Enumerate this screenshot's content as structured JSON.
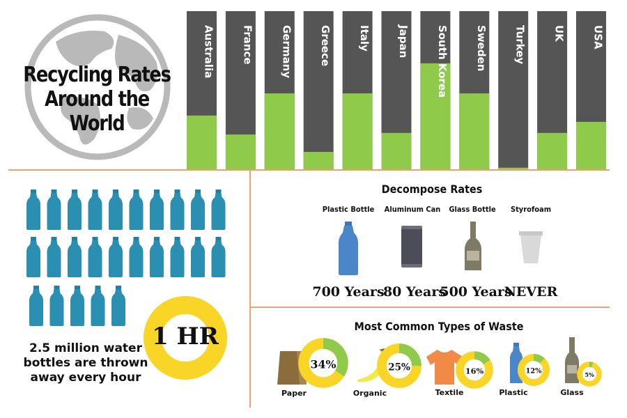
{
  "title": {
    "line1": "Recycling Rates",
    "line2": "Around the World"
  },
  "colors": {
    "bar_dark": "#555555",
    "bar_green": "#8fca4b",
    "divider": "#f0a070",
    "bottle_blue": "#2a8fb0",
    "yellow": "#f8d526",
    "globe": "#b9b9b9"
  },
  "chart_data": {
    "type": "bar",
    "title": "Recycling Rates Around the World",
    "categories": [
      "Australia",
      "France",
      "Germany",
      "Greece",
      "Italy",
      "Japan",
      "South Korea",
      "Sweden",
      "Turkey",
      "UK",
      "USA"
    ],
    "values": [
      34,
      22,
      48,
      11,
      48,
      23,
      67,
      48,
      1,
      23,
      30
    ],
    "ylim": [
      0,
      100
    ]
  },
  "bottles_fact": {
    "text": "2.5 million water bottles are thrown away every hour",
    "badge": "1 HR",
    "icon": "water-bottle-icon"
  },
  "decompose": {
    "title": "Decompose Rates",
    "items": [
      {
        "name": "Plastic Bottle",
        "years": "700 Years",
        "icon": "plastic-bottle-icon"
      },
      {
        "name": "Aluminum Can",
        "years": "80 Years",
        "icon": "aluminum-can-icon"
      },
      {
        "name": "Glass Bottle",
        "years": "500 Years",
        "icon": "glass-bottle-icon"
      },
      {
        "name": "Styrofoam",
        "years": "NEVER",
        "icon": "styrofoam-cup-icon"
      }
    ]
  },
  "waste": {
    "title": "Most Common Types of Waste",
    "items": [
      {
        "name": "Paper",
        "percent": 34,
        "label": "34%",
        "icon": "paper-bag-icon"
      },
      {
        "name": "Organic",
        "percent": 25,
        "label": "25%",
        "icon": "banana-icon"
      },
      {
        "name": "Textile",
        "percent": 16,
        "label": "16%",
        "icon": "shirt-icon"
      },
      {
        "name": "Plastic",
        "percent": 12,
        "label": "12%",
        "icon": "plastic-bottle-icon"
      },
      {
        "name": "Glass",
        "percent": 5,
        "label": "5%",
        "icon": "glass-bottle-icon"
      }
    ]
  }
}
